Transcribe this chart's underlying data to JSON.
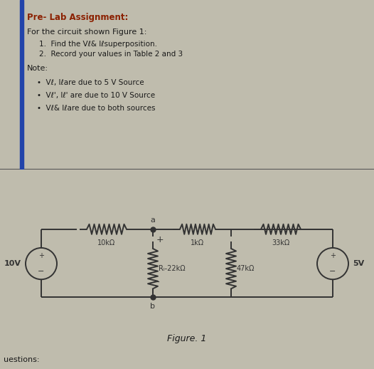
{
  "top_bg": "#dbd5c0",
  "bottom_bg": "#d0cbb8",
  "fig_bg": "#bfbcad",
  "title": "Pre- Lab Assignment:",
  "line1": "For the circuit shown Figure 1:",
  "item1": "1.  Find the Vℓ& Iℓsuperposition.",
  "item2": "2.  Record your values in Table 2 and 3",
  "note_label": "Note:",
  "bullet1": "Vℓ, Iℓare due to 5 V Source",
  "bullet2": "Vℓ', Iℓ' are due to 10 V Source",
  "bullet3": "Vℓ& Iℓare due to both sources",
  "fig_label": "Figure. 1",
  "questions": "uestions:",
  "R1_label": "10kΩ",
  "R2_label": "Rₗ-22kΩ",
  "R3_label": "1kΩ",
  "R4_label": "47kΩ",
  "R5_label": "33kΩ",
  "V1_label": "10V",
  "V2_label": "5V",
  "node_a": "a",
  "node_b": "b",
  "plus_sign": "+",
  "minus_sign": "-",
  "divider_color": "#555555",
  "blue_bar_color": "#2244aa",
  "text_color": "#1a1a1a",
  "title_color": "#8b2000",
  "circuit_color": "#333333"
}
